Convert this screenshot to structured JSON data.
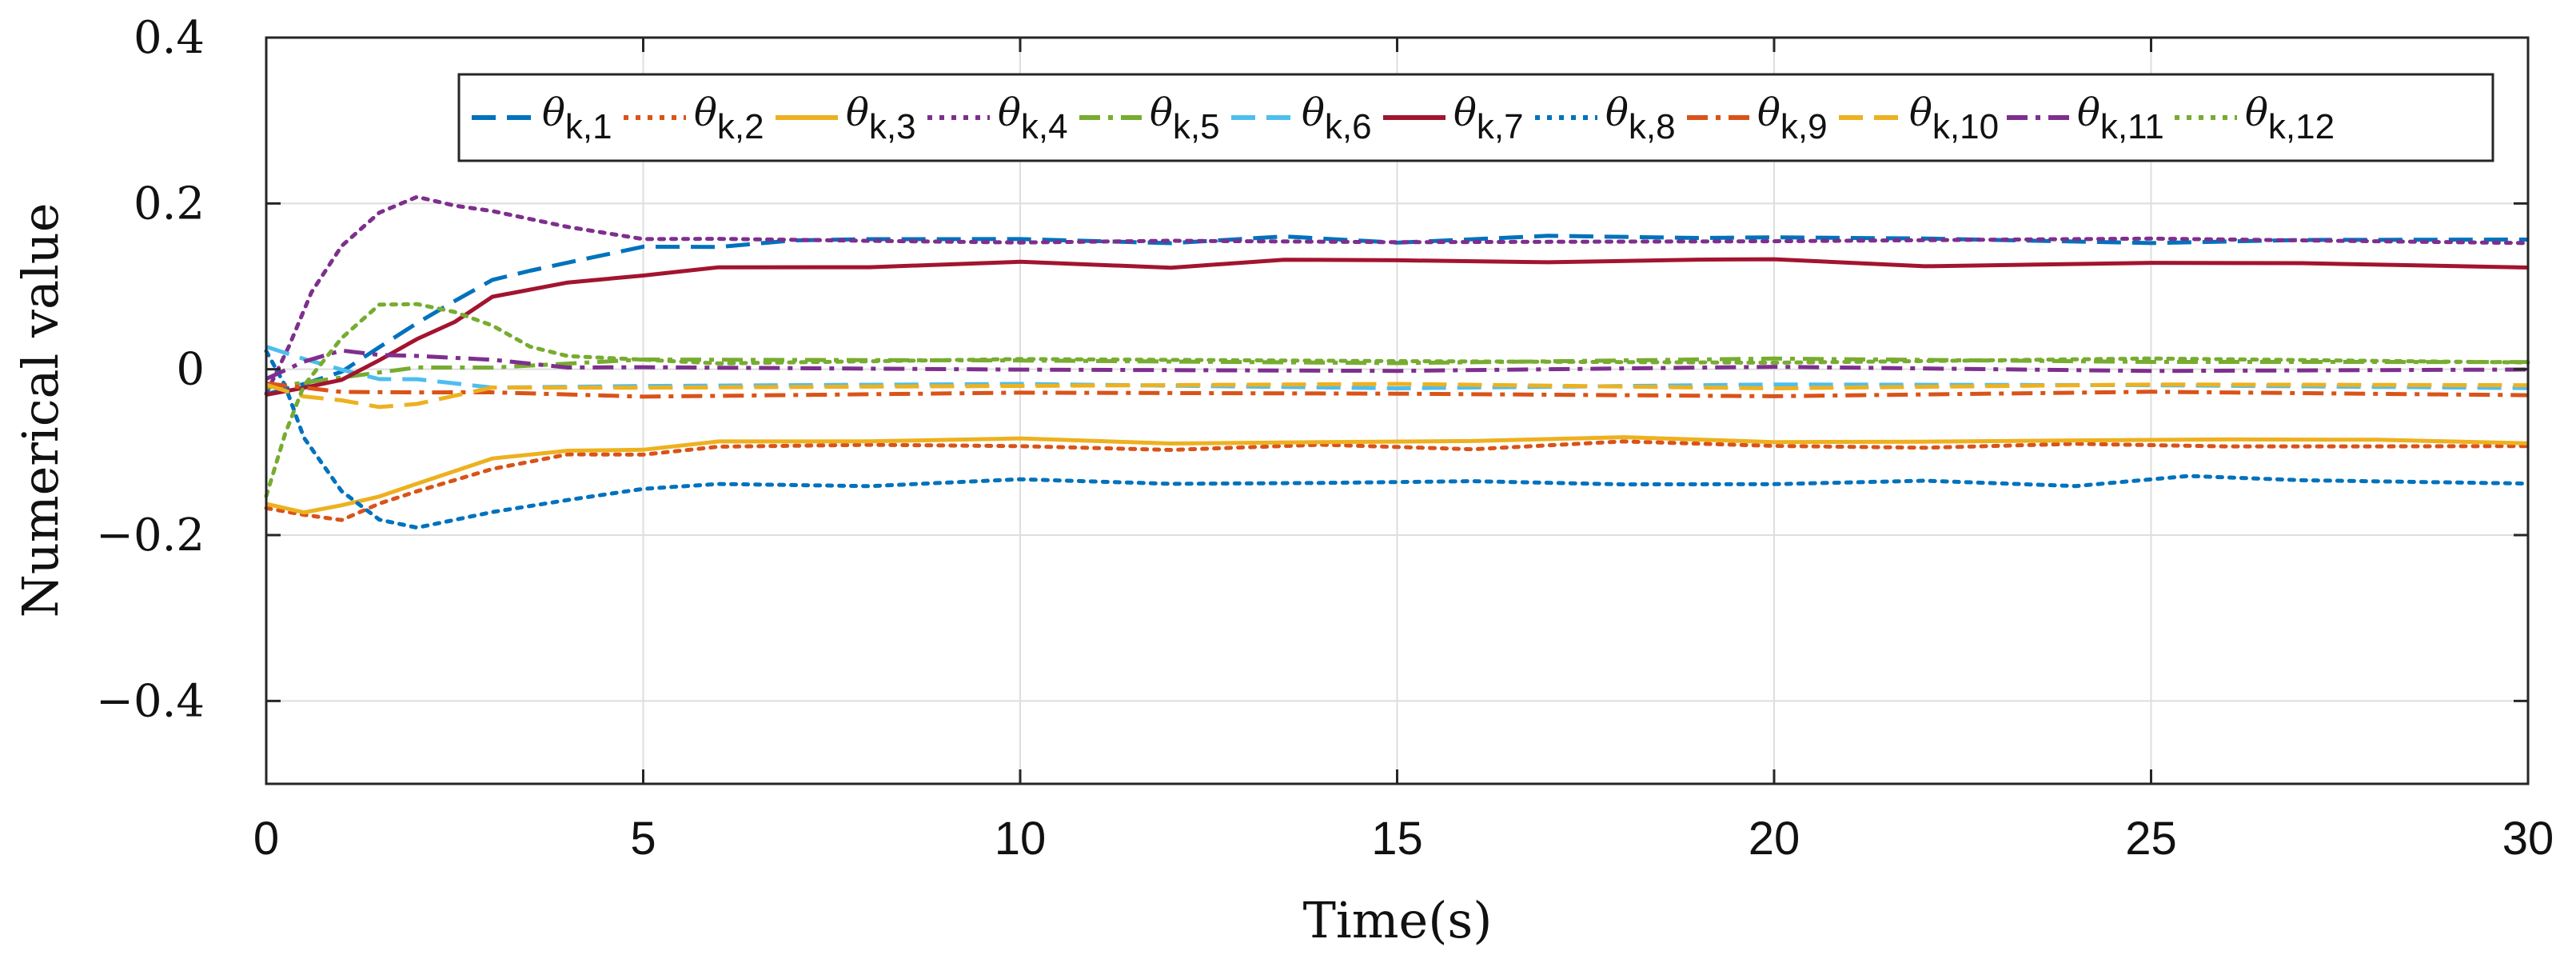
{
  "chart_data": {
    "type": "line",
    "title": "",
    "xlabel": "Time(s)",
    "ylabel": "Numerical value",
    "xlim": [
      0,
      30
    ],
    "ylim": [
      -0.5,
      0.4
    ],
    "grid": true,
    "legend_position": "top-right",
    "xticks": [
      0,
      5,
      10,
      15,
      20,
      25,
      30
    ],
    "xtick_labels": [
      "0",
      "5",
      "10",
      "15",
      "20",
      "25",
      "30"
    ],
    "yticks": [
      0.4,
      0.2,
      0,
      -0.2,
      -0.4
    ],
    "ytick_labels": [
      "0.4",
      "0.2",
      "0",
      "−0.2",
      "−0.4"
    ],
    "series": [
      {
        "name": "θk,1",
        "symbol": "θ",
        "subscript": "k,1",
        "color": "#0072BD",
        "dash": "dash",
        "x": [
          0,
          0.5,
          1,
          1.5,
          2,
          2.5,
          3,
          3.5,
          4,
          5,
          6,
          7,
          8,
          10,
          12,
          13.5,
          15,
          17,
          19,
          20,
          22,
          25,
          27,
          30
        ],
        "y": [
          -0.03,
          -0.02,
          0.0,
          0.025,
          0.055,
          0.085,
          0.105,
          0.12,
          0.13,
          0.145,
          0.15,
          0.155,
          0.155,
          0.16,
          0.15,
          0.16,
          0.155,
          0.158,
          0.16,
          0.16,
          0.155,
          0.155,
          0.155,
          0.155
        ]
      },
      {
        "name": "θk,2",
        "symbol": "θ",
        "subscript": "k,2",
        "color": "#D95319",
        "dash": "dot",
        "x": [
          0,
          0.5,
          1,
          1.5,
          2,
          3,
          4,
          5,
          6,
          8,
          10,
          12,
          14,
          16,
          18,
          20,
          22,
          24,
          26,
          28,
          30
        ],
        "y": [
          -0.17,
          -0.175,
          -0.18,
          -0.165,
          -0.145,
          -0.12,
          -0.105,
          -0.1,
          -0.095,
          -0.092,
          -0.09,
          -0.1,
          -0.09,
          -0.095,
          -0.09,
          -0.09,
          -0.095,
          -0.092,
          -0.09,
          -0.095,
          -0.093
        ]
      },
      {
        "name": "θk,3",
        "symbol": "θ",
        "subscript": "k,3",
        "color": "#EDB120",
        "dash": "solid",
        "x": [
          0,
          0.5,
          1,
          1.5,
          2,
          3,
          4,
          5,
          6,
          8,
          10,
          12,
          14,
          16,
          18,
          20,
          22,
          24,
          26,
          28,
          30
        ],
        "y": [
          -0.165,
          -0.17,
          -0.165,
          -0.155,
          -0.135,
          -0.11,
          -0.098,
          -0.095,
          -0.09,
          -0.085,
          -0.083,
          -0.092,
          -0.085,
          -0.088,
          -0.083,
          -0.085,
          -0.09,
          -0.085,
          -0.083,
          -0.088,
          -0.087
        ]
      },
      {
        "name": "θk,4",
        "symbol": "θ",
        "subscript": "k,4",
        "color": "#7E2F8E",
        "dash": "dot",
        "x": [
          0,
          0.3,
          0.6,
          1,
          1.5,
          2,
          2.5,
          3,
          4,
          5,
          6,
          8,
          10,
          12,
          15,
          20,
          25,
          30
        ],
        "y": [
          -0.03,
          0.03,
          0.09,
          0.15,
          0.19,
          0.205,
          0.2,
          0.19,
          0.17,
          0.16,
          0.155,
          0.155,
          0.155,
          0.152,
          0.155,
          0.155,
          0.155,
          0.155
        ]
      },
      {
        "name": "θk,5",
        "symbol": "θ",
        "subscript": "k,5",
        "color": "#77AC30",
        "dash": "dashdot",
        "x": [
          0,
          1,
          2,
          3,
          5,
          10,
          15,
          20,
          25,
          30
        ],
        "y": [
          -0.02,
          -0.01,
          0.0,
          0.005,
          0.01,
          0.01,
          0.01,
          0.01,
          0.01,
          0.01
        ]
      },
      {
        "name": "θk,6",
        "symbol": "θ",
        "subscript": "k,6",
        "color": "#4DBEEE",
        "dash": "dash",
        "x": [
          0,
          0.5,
          1,
          1.5,
          2,
          3,
          5,
          10,
          15,
          20,
          25,
          30
        ],
        "y": [
          0.03,
          0.01,
          0.0,
          -0.01,
          -0.015,
          -0.02,
          -0.02,
          -0.02,
          -0.02,
          -0.02,
          -0.02,
          -0.02
        ]
      },
      {
        "name": "θk,7",
        "symbol": "θ",
        "subscript": "k,7",
        "color": "#A2142F",
        "dash": "solid",
        "x": [
          0,
          0.5,
          1,
          1.5,
          2,
          2.5,
          3,
          4,
          5,
          6,
          8,
          10,
          12,
          13.5,
          15,
          17,
          19,
          20,
          22,
          25,
          27,
          30
        ],
        "y": [
          -0.03,
          -0.025,
          -0.01,
          0.01,
          0.035,
          0.06,
          0.085,
          0.105,
          0.115,
          0.12,
          0.125,
          0.13,
          0.12,
          0.135,
          0.13,
          0.128,
          0.135,
          0.13,
          0.125,
          0.13,
          0.125,
          0.125
        ]
      },
      {
        "name": "θk,8",
        "symbol": "θ",
        "subscript": "k,8",
        "color": "#0072BD",
        "dash": "dot",
        "x": [
          0,
          0.25,
          0.5,
          1,
          1.5,
          2,
          3,
          4,
          5,
          6,
          8,
          10,
          12,
          14,
          16,
          18,
          20,
          22,
          24,
          25.5,
          27,
          30
        ],
        "y": [
          0.02,
          -0.02,
          -0.08,
          -0.15,
          -0.18,
          -0.19,
          -0.175,
          -0.155,
          -0.145,
          -0.14,
          -0.138,
          -0.135,
          -0.138,
          -0.135,
          -0.138,
          -0.137,
          -0.138,
          -0.137,
          -0.138,
          -0.13,
          -0.135,
          -0.135
        ]
      },
      {
        "name": "θk,9",
        "symbol": "θ",
        "subscript": "k,9",
        "color": "#D95319",
        "dash": "dashdot",
        "x": [
          0,
          1,
          2,
          3,
          5,
          10,
          15,
          20,
          25,
          30
        ],
        "y": [
          -0.02,
          -0.025,
          -0.028,
          -0.03,
          -0.03,
          -0.03,
          -0.03,
          -0.03,
          -0.03,
          -0.03
        ]
      },
      {
        "name": "θk,10",
        "symbol": "θ",
        "subscript": "k,10",
        "color": "#EDB120",
        "dash": "dash",
        "x": [
          0,
          0.5,
          1,
          1.5,
          2,
          3,
          5,
          10,
          15,
          20,
          25,
          30
        ],
        "y": [
          -0.02,
          -0.03,
          -0.04,
          -0.045,
          -0.04,
          -0.025,
          -0.02,
          -0.02,
          -0.02,
          -0.02,
          -0.02,
          -0.02
        ]
      },
      {
        "name": "θk,11",
        "symbol": "θ",
        "subscript": "k,11",
        "color": "#7E2F8E",
        "dash": "dashdot",
        "x": [
          0,
          0.5,
          1,
          1.5,
          2,
          3,
          4,
          5,
          10,
          15,
          20,
          25,
          30
        ],
        "y": [
          -0.01,
          0.01,
          0.02,
          0.02,
          0.015,
          0.01,
          0.005,
          0.0,
          0.0,
          0.0,
          0.0,
          0.0,
          0.0
        ]
      },
      {
        "name": "θk,12",
        "symbol": "θ",
        "subscript": "k,12",
        "color": "#77AC30",
        "dash": "dot",
        "x": [
          0,
          0.25,
          0.5,
          1,
          1.5,
          2,
          2.5,
          3,
          3.5,
          4,
          5,
          6,
          10,
          15,
          20,
          25,
          30
        ],
        "y": [
          -0.15,
          -0.08,
          -0.02,
          0.04,
          0.075,
          0.08,
          0.07,
          0.05,
          0.03,
          0.015,
          0.01,
          0.01,
          0.01,
          0.01,
          0.01,
          0.01,
          0.01
        ]
      }
    ]
  }
}
